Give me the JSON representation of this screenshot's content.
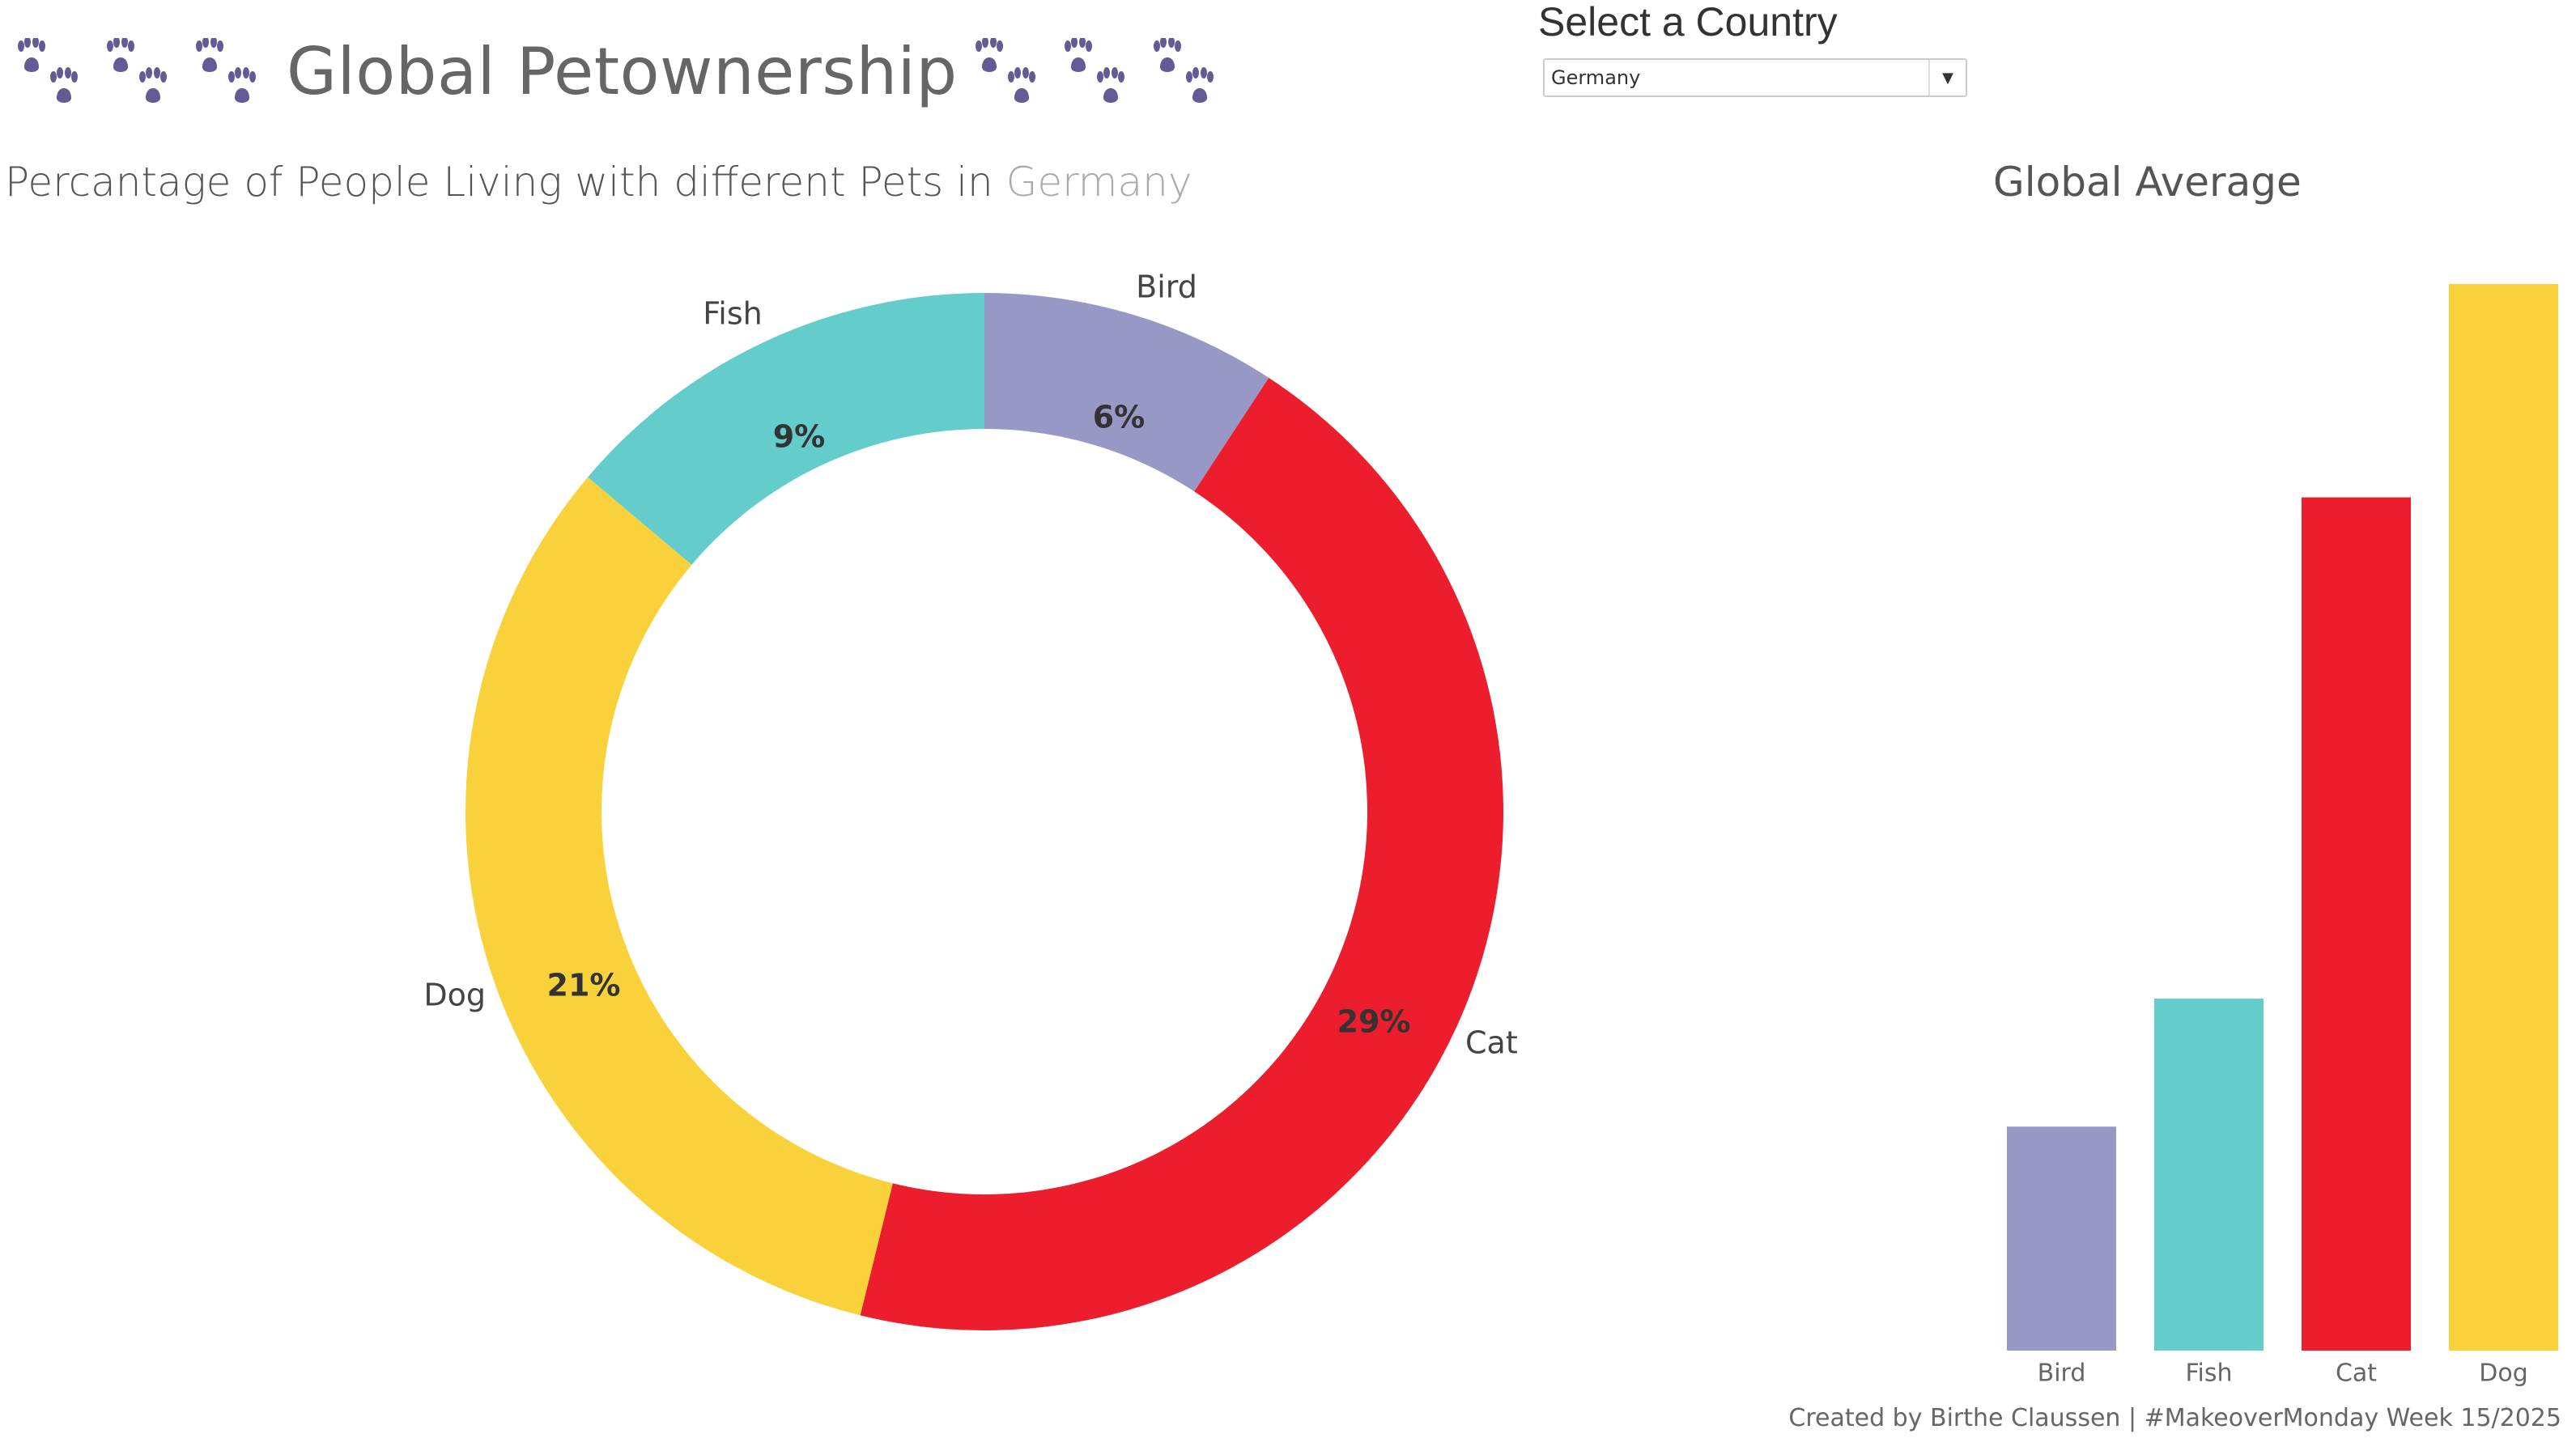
{
  "header": {
    "title": "Global Petownership",
    "paw_icon_color": "#635a96",
    "paw_count_each_side": 3
  },
  "filter": {
    "label": "Select a Country",
    "selected": "Germany"
  },
  "subtitle": {
    "prefix": "Percantage of People Living with different Pets in",
    "country": "Germany"
  },
  "global_title": "Global Average",
  "footer": "Created by Birthe Claussen | #MakeoverMonday Week 15/2025",
  "chart_data": [
    {
      "type": "pie",
      "variant": "donut",
      "categories": [
        "Bird",
        "Cat",
        "Dog",
        "Fish"
      ],
      "values": [
        6,
        29,
        21,
        9
      ],
      "data_labels": [
        "6%",
        "29%",
        "21%",
        "9%"
      ],
      "colors": [
        "#9898c6",
        "#ec1e2d",
        "#f9d23b",
        "#64cccb"
      ],
      "start": "top, clockwise"
    },
    {
      "type": "bar",
      "title": "Global Average",
      "categories": [
        "Bird",
        "Fish",
        "Cat",
        "Dog"
      ],
      "values_relative_to_max": [
        0.21,
        0.33,
        0.8,
        1.0
      ],
      "colors": [
        "#9898c6",
        "#64cccb",
        "#ec1e2d",
        "#f9d23b"
      ],
      "axis": "hidden",
      "grid": false
    }
  ]
}
